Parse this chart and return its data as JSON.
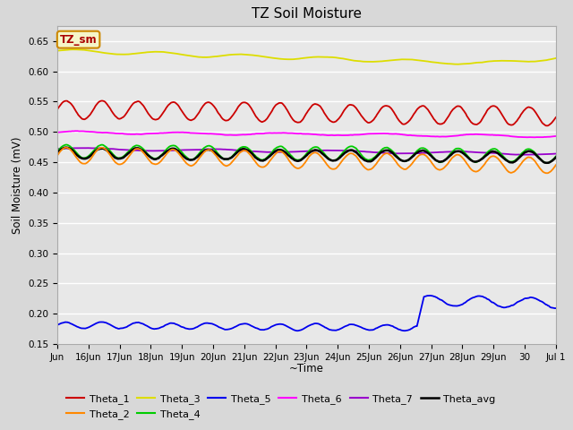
{
  "title": "TZ Soil Moisture",
  "ylabel": "Soil Moisture (mV)",
  "xlabel": "~Time",
  "ylim": [
    0.15,
    0.675
  ],
  "yticks": [
    0.15,
    0.2,
    0.25,
    0.3,
    0.35,
    0.4,
    0.45,
    0.5,
    0.55,
    0.6,
    0.65
  ],
  "bg_color": "#d8d8d8",
  "plot_bg_color": "#e8e8e8",
  "series": {
    "Theta_1": {
      "color": "#cc0000",
      "lw": 1.3
    },
    "Theta_2": {
      "color": "#ff8800",
      "lw": 1.3
    },
    "Theta_3": {
      "color": "#dddd00",
      "lw": 1.3
    },
    "Theta_4": {
      "color": "#00cc00",
      "lw": 1.3
    },
    "Theta_5": {
      "color": "#0000ee",
      "lw": 1.3
    },
    "Theta_6": {
      "color": "#ff00ff",
      "lw": 1.3
    },
    "Theta_7": {
      "color": "#9900cc",
      "lw": 1.3
    },
    "Theta_avg": {
      "color": "#000000",
      "lw": 1.8
    }
  },
  "x_labels": [
    "Jun",
    "16Jun",
    "17Jun",
    "18Jun",
    "19Jun",
    "20Jun",
    "21Jun",
    "22Jun",
    "23Jun",
    "24Jun",
    "25Jun",
    "26Jun",
    "27Jun",
    "28Jun",
    "29Jun",
    "30",
    "Jul 1"
  ],
  "n_points": 500
}
